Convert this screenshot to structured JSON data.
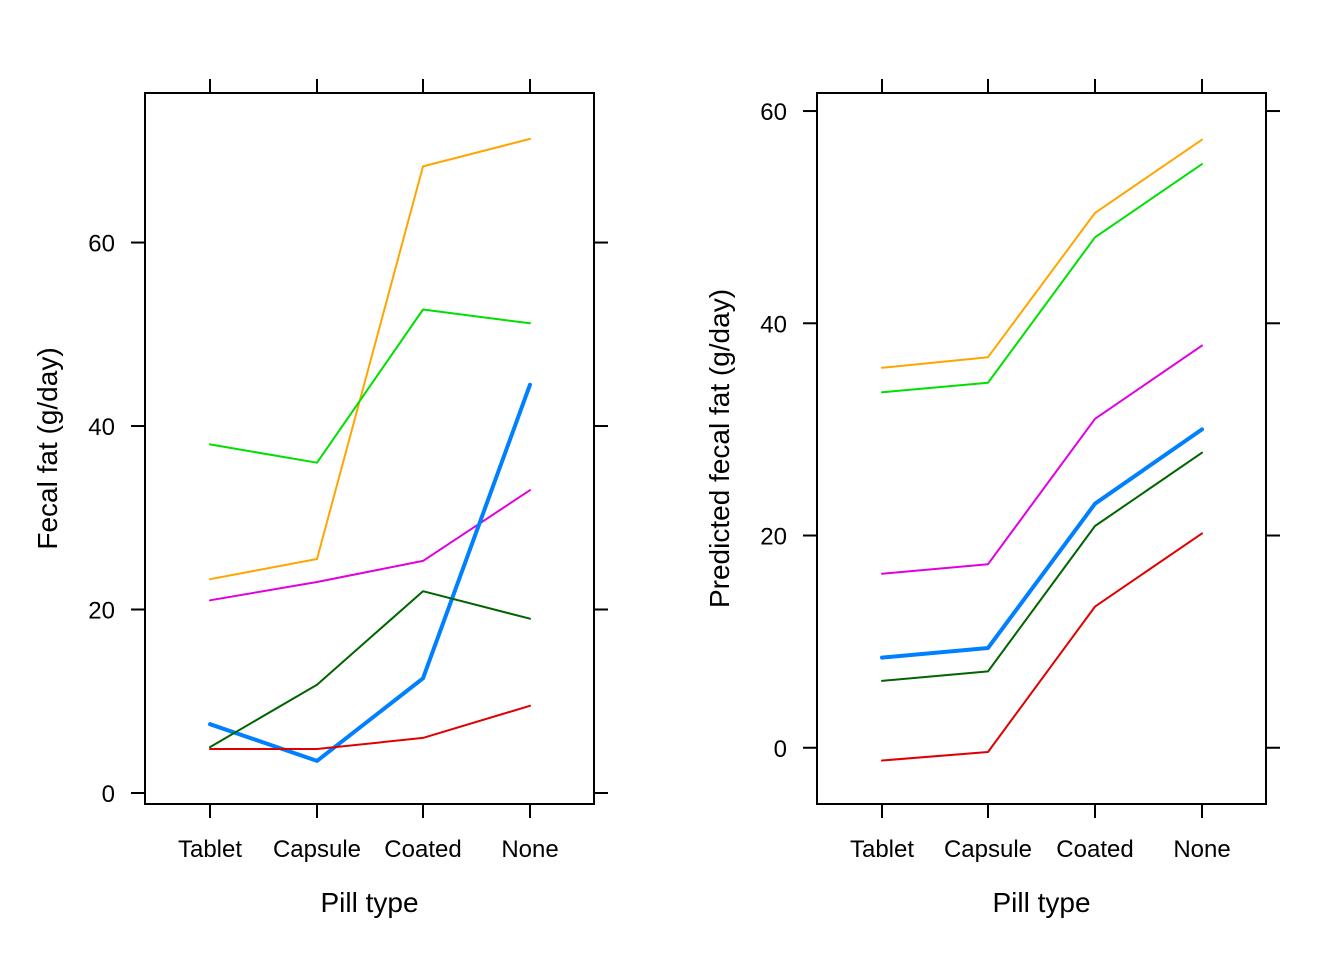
{
  "chart_data": [
    {
      "type": "line",
      "xlabel": "Pill type",
      "ylabel": "Fecal fat (g/day)",
      "categories": [
        "Tablet",
        "Capsule",
        "Coated",
        "None"
      ],
      "yticks": [
        0,
        20,
        40,
        60
      ],
      "ylim": [
        -1.2,
        76.3
      ],
      "grid": false,
      "series": [
        {
          "color": "#FFA500",
          "width": 2,
          "values": [
            23.3,
            25.5,
            68.3,
            71.3
          ]
        },
        {
          "color": "#00E000",
          "width": 2,
          "values": [
            38.0,
            36.0,
            52.7,
            51.2
          ]
        },
        {
          "color": "#E000E0",
          "width": 2,
          "values": [
            21.0,
            23.0,
            25.3,
            33.0
          ]
        },
        {
          "color": "#0080FF",
          "width": 4,
          "values": [
            7.5,
            3.5,
            12.5,
            44.5
          ]
        },
        {
          "color": "#006400",
          "width": 2,
          "values": [
            5.0,
            11.8,
            22.0,
            19.0
          ]
        },
        {
          "color": "#E00000",
          "width": 2,
          "values": [
            4.8,
            4.8,
            6.0,
            9.5
          ]
        }
      ]
    },
    {
      "type": "line",
      "xlabel": "Pill type",
      "ylabel": "Predicted fecal fat (g/day)",
      "categories": [
        "Tablet",
        "Capsule",
        "Coated",
        "None"
      ],
      "yticks": [
        0,
        20,
        40,
        60
      ],
      "ylim": [
        -5.3,
        61.7
      ],
      "grid": false,
      "series": [
        {
          "color": "#FFA500",
          "width": 2,
          "values": [
            35.8,
            36.8,
            50.4,
            57.3
          ]
        },
        {
          "color": "#00E000",
          "width": 2,
          "values": [
            33.5,
            34.4,
            48.1,
            55.0
          ]
        },
        {
          "color": "#E000E0",
          "width": 2,
          "values": [
            16.4,
            17.3,
            31.0,
            37.9
          ]
        },
        {
          "color": "#0080FF",
          "width": 4,
          "values": [
            8.5,
            9.4,
            23.0,
            30.0
          ]
        },
        {
          "color": "#006400",
          "width": 2,
          "values": [
            6.3,
            7.2,
            20.9,
            27.8
          ]
        },
        {
          "color": "#E00000",
          "width": 2,
          "values": [
            -1.2,
            -0.4,
            13.3,
            20.2
          ]
        }
      ]
    }
  ]
}
